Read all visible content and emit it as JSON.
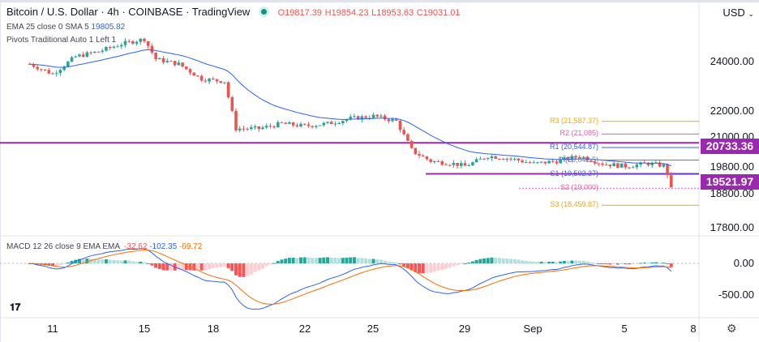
{
  "header": {
    "title": "Bitcoin / U.S. Dollar · 4h · COINBASE · TradingView",
    "open": "O19817.39",
    "high": "H19854.23",
    "low": "L18953.63",
    "close": "C19031.01"
  },
  "indicators": {
    "ema_label": "EMA 25 close 0 SMA 5",
    "ema_value": "19805.82",
    "pivots_label": "Pivots Traditional Auto 1 Left 1",
    "macd_label": "MACD 12 26 close 9 EMA EMA",
    "macd_hist": "-32.62",
    "macd_line": "-102.35",
    "macd_signal": "-69.72"
  },
  "price_axis": {
    "currency": "USD",
    "labels": [
      "24000.00",
      "22000.00",
      "21000.00",
      "19800.00",
      "18800.00",
      "17800.00"
    ],
    "tags": [
      "20733.36",
      "19521.97"
    ],
    "tag_color": "#9c27b0"
  },
  "macd_axis": {
    "labels": [
      "0.00",
      "-500.00"
    ]
  },
  "time_axis": {
    "labels": [
      "11",
      "15",
      "18",
      "22",
      "25",
      "29",
      "Sep",
      "5",
      "8"
    ]
  },
  "pivots": [
    {
      "label": "R3 (21,587.37)",
      "value": 21587.37,
      "color": "#f7a21b"
    },
    {
      "label": "R2 (21,085)",
      "value": 21085,
      "color": "#e35daa"
    },
    {
      "label": "R1 (20,544.87)",
      "value": 20544.87,
      "color": "#2962ff"
    },
    {
      "label": "P (20,042.5)",
      "value": 20042.5,
      "color": "#787b86"
    },
    {
      "label": "S1 (19,502.37)",
      "value": 19502.37,
      "color": "#2962ff"
    },
    {
      "label": "S2 (19,000)",
      "value": 19000,
      "color": "#e35daa"
    },
    {
      "label": "S3 (18,459.87)",
      "value": 18459.87,
      "color": "#f7a21b"
    }
  ],
  "chart_data": {
    "type": "candlestick",
    "interval": "4h",
    "colors": {
      "up": "#26a69a",
      "down": "#ef5350",
      "ema": "#2962ff",
      "macd": "#2962ff",
      "signal": "#ff6d00"
    },
    "price_path": [
      [
        10,
        23900
      ],
      [
        11,
        23500
      ],
      [
        12,
        24200
      ],
      [
        13,
        24400
      ],
      [
        14,
        24700
      ],
      [
        15,
        24900
      ],
      [
        15.5,
        24100
      ],
      [
        16.5,
        23900
      ],
      [
        17.5,
        23300
      ],
      [
        18.5,
        23200
      ],
      [
        19,
        21300
      ],
      [
        20,
        21300
      ],
      [
        21,
        21500
      ],
      [
        22,
        21400
      ],
      [
        23,
        21500
      ],
      [
        24,
        21700
      ],
      [
        25,
        21800
      ],
      [
        26,
        21600
      ],
      [
        26.7,
        20400
      ],
      [
        27.5,
        20000
      ],
      [
        28.5,
        19900
      ],
      [
        29,
        19800
      ],
      [
        30,
        20200
      ],
      [
        31,
        20100
      ],
      [
        32,
        19900
      ],
      [
        33,
        20000
      ],
      [
        34,
        20200
      ],
      [
        35,
        19900
      ],
      [
        36,
        19800
      ],
      [
        37,
        19900
      ],
      [
        37.7,
        19817
      ],
      [
        38.05,
        19031
      ]
    ],
    "horizontal_lines": [
      20733.36,
      19521.97
    ]
  }
}
